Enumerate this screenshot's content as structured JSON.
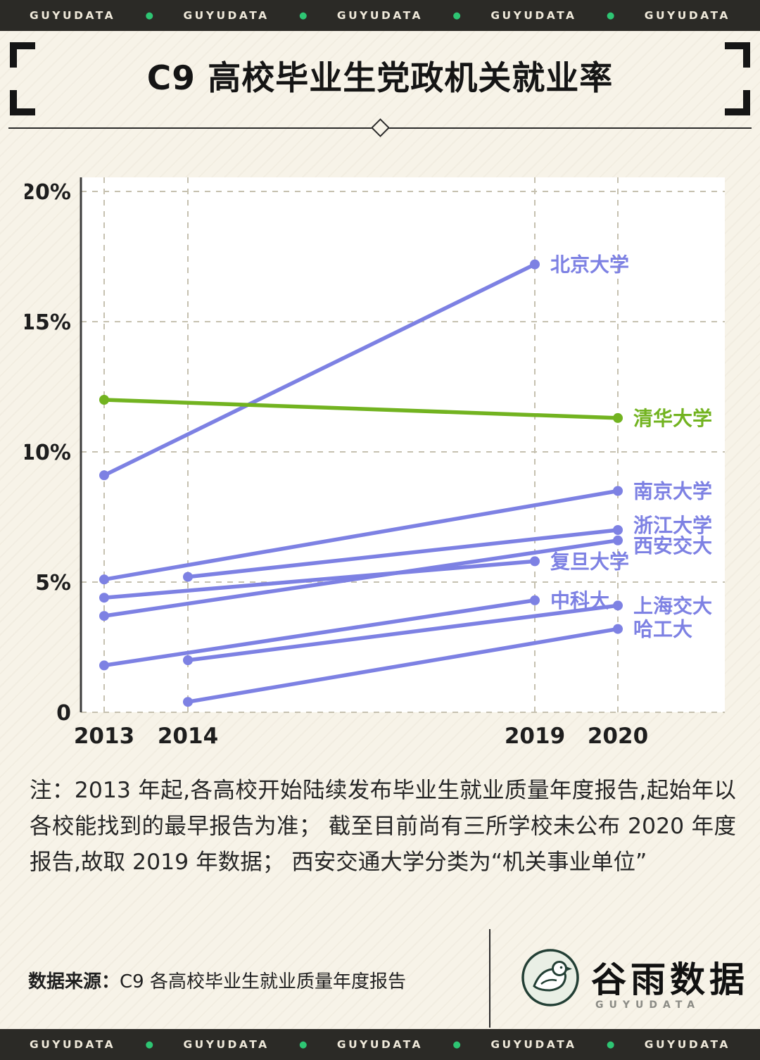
{
  "brand_bar": {
    "label": "GUYUDATA",
    "repeat": 5,
    "dot": "●",
    "bar_bg": "#2b2a26",
    "text_color": "#efe9da",
    "dot_color": "#2ec573"
  },
  "header": {
    "title": "C9 高校毕业生党政机关就业率"
  },
  "chart_data": {
    "type": "line",
    "title": "C9 高校毕业生党政机关就业率",
    "x_ticks": [
      "2013",
      "2014",
      "2019",
      "2020"
    ],
    "y_ticks": [
      0,
      5,
      10,
      15,
      20
    ],
    "y_tick_labels": [
      "0",
      "5%",
      "10%",
      "15%",
      "20%"
    ],
    "ylim": [
      0,
      20.5
    ],
    "unit": "%",
    "grid": "dashed",
    "legend_position": "end-of-line-labels",
    "colors": {
      "purple": "#7d81e3",
      "green": "#72b320"
    },
    "series": [
      {
        "name": "北京大学",
        "color": "#7d81e3",
        "points": [
          {
            "x": "2013",
            "y": 9.1
          },
          {
            "x": "2019",
            "y": 17.2
          }
        ]
      },
      {
        "name": "清华大学",
        "color": "#72b320",
        "points": [
          {
            "x": "2013",
            "y": 12.0
          },
          {
            "x": "2020",
            "y": 11.3
          }
        ]
      },
      {
        "name": "南京大学",
        "color": "#7d81e3",
        "points": [
          {
            "x": "2013",
            "y": 5.1
          },
          {
            "x": "2020",
            "y": 8.5
          }
        ]
      },
      {
        "name": "浙江大学",
        "color": "#7d81e3",
        "label_dy": -7,
        "points": [
          {
            "x": "2014",
            "y": 5.2
          },
          {
            "x": "2020",
            "y": 7.0
          }
        ]
      },
      {
        "name": "西安交大",
        "color": "#7d81e3",
        "label_dy": 7,
        "points": [
          {
            "x": "2013",
            "y": 3.7
          },
          {
            "x": "2020",
            "y": 6.6
          }
        ]
      },
      {
        "name": "复旦大学",
        "color": "#7d81e3",
        "points": [
          {
            "x": "2013",
            "y": 4.4
          },
          {
            "x": "2019",
            "y": 5.8
          }
        ]
      },
      {
        "name": "中科大",
        "color": "#7d81e3",
        "points": [
          {
            "x": "2013",
            "y": 1.8
          },
          {
            "x": "2019",
            "y": 4.3
          }
        ]
      },
      {
        "name": "上海交大",
        "color": "#7d81e3",
        "points": [
          {
            "x": "2014",
            "y": 2.0
          },
          {
            "x": "2020",
            "y": 4.1
          }
        ]
      },
      {
        "name": "哈工大",
        "color": "#7d81e3",
        "points": [
          {
            "x": "2014",
            "y": 0.4
          },
          {
            "x": "2020",
            "y": 3.2
          }
        ]
      }
    ]
  },
  "note": {
    "text": "注：2013 年起,各高校开始陆续发布毕业生就业质量年度报告,起始年以各校能找到的最早报告为准； 截至目前尚有三所学校未公布 2020 年度报告,故取 2019 年数据； 西安交通大学分类为“机关事业单位”"
  },
  "footer": {
    "source_label": "数据来源：",
    "source_text": "C9 各高校毕业生就业质量年度报告",
    "logo_text": "谷雨数据",
    "logo_sub": "GUYUDATA"
  }
}
